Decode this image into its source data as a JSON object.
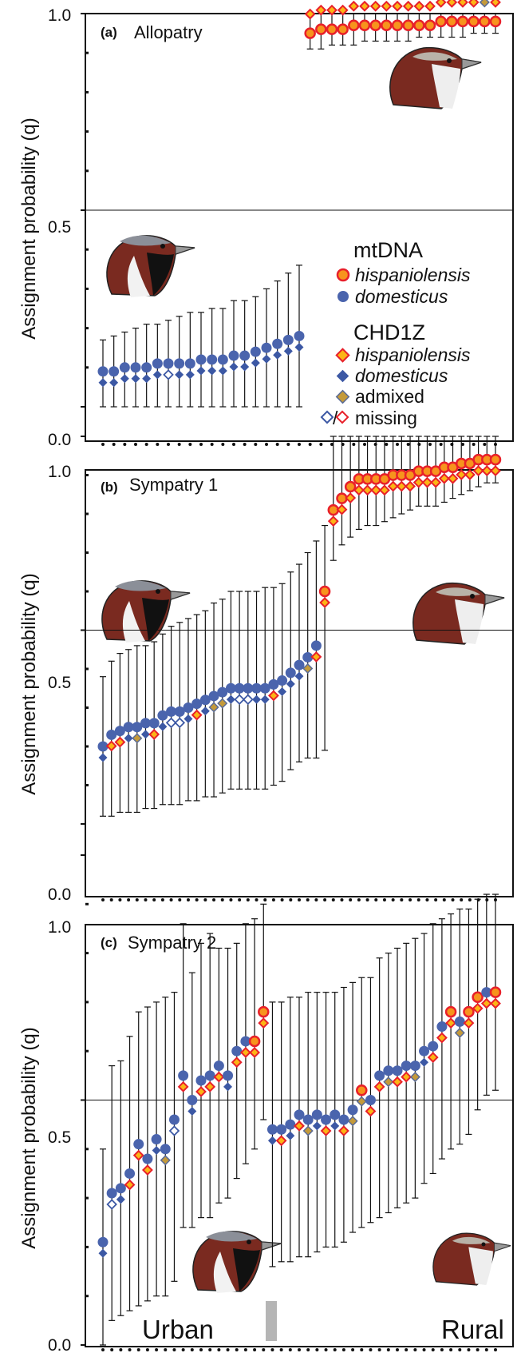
{
  "colors": {
    "mt_hisp_fill": "#f7941d",
    "mt_hisp_stroke": "#e8202a",
    "mt_dom": "#4a64ad",
    "chd_hisp_fill": "#fcb515",
    "chd_hisp_stroke": "#e8202a",
    "chd_dom": "#3c58a4",
    "admixed_fill": "#c49a3a",
    "admixed_stroke": "#5a6b96",
    "bird_head": "#7a2a20",
    "grey_marker": "#b5b5b5"
  },
  "legend": {
    "mtdna_title": "mtDNA",
    "mt_hisp": "hispaniolensis",
    "mt_dom": "domesticus",
    "chd_title": "CHD1Z",
    "chd_hisp": "hispaniolensis",
    "chd_dom": "domesticus",
    "admixed": "admixed",
    "missing": "missing",
    "missing_slash": "/"
  },
  "chart_data": [
    {
      "panel": "(a)",
      "title": "Allopatry",
      "type": "scatter",
      "ylabel": "Assignment probability (q)",
      "ylim": [
        0,
        1
      ],
      "yticks": [
        "0.0",
        "0.5",
        "1.0"
      ],
      "reference_line": 0.5,
      "individuals": [
        {
          "q": 0.09,
          "lo": 0.0,
          "hi": 0.17,
          "mt": "dom",
          "chd": "dom"
        },
        {
          "q": 0.09,
          "lo": 0.0,
          "hi": 0.18,
          "mt": "dom",
          "chd": "dom"
        },
        {
          "q": 0.1,
          "lo": 0.0,
          "hi": 0.19,
          "mt": "dom",
          "chd": "dom"
        },
        {
          "q": 0.1,
          "lo": 0.0,
          "hi": 0.2,
          "mt": "dom",
          "chd": "dom"
        },
        {
          "q": 0.1,
          "lo": 0.0,
          "hi": 0.21,
          "mt": "dom",
          "chd": "dom"
        },
        {
          "q": 0.11,
          "lo": 0.0,
          "hi": 0.21,
          "mt": "dom",
          "chd": "dom"
        },
        {
          "q": 0.11,
          "lo": 0.0,
          "hi": 0.22,
          "mt": "dom",
          "chd": "missing-dom"
        },
        {
          "q": 0.11,
          "lo": 0.0,
          "hi": 0.23,
          "mt": "dom",
          "chd": "dom"
        },
        {
          "q": 0.11,
          "lo": 0.0,
          "hi": 0.24,
          "mt": "dom",
          "chd": "dom"
        },
        {
          "q": 0.12,
          "lo": 0.0,
          "hi": 0.24,
          "mt": "dom",
          "chd": "dom"
        },
        {
          "q": 0.12,
          "lo": 0.0,
          "hi": 0.25,
          "mt": "dom",
          "chd": "dom"
        },
        {
          "q": 0.12,
          "lo": 0.0,
          "hi": 0.25,
          "mt": "dom",
          "chd": "dom"
        },
        {
          "q": 0.13,
          "lo": 0.0,
          "hi": 0.27,
          "mt": "dom",
          "chd": "dom"
        },
        {
          "q": 0.13,
          "lo": 0.0,
          "hi": 0.27,
          "mt": "dom",
          "chd": "dom"
        },
        {
          "q": 0.14,
          "lo": 0.0,
          "hi": 0.28,
          "mt": "dom",
          "chd": "dom"
        },
        {
          "q": 0.15,
          "lo": 0.0,
          "hi": 0.3,
          "mt": "dom",
          "chd": "dom"
        },
        {
          "q": 0.16,
          "lo": 0.0,
          "hi": 0.32,
          "mt": "dom",
          "chd": "dom"
        },
        {
          "q": 0.17,
          "lo": 0.0,
          "hi": 0.34,
          "mt": "dom",
          "chd": "dom"
        },
        {
          "q": 0.18,
          "lo": 0.0,
          "hi": 0.36,
          "mt": "dom",
          "chd": "dom"
        },
        {
          "q": 0.95,
          "lo": 0.91,
          "hi": 1.0,
          "mt": "hisp",
          "chd": "hisp"
        },
        {
          "q": 0.96,
          "lo": 0.91,
          "hi": 1.0,
          "mt": "hisp",
          "chd": "hisp"
        },
        {
          "q": 0.96,
          "lo": 0.92,
          "hi": 1.0,
          "mt": "hisp",
          "chd": "hisp"
        },
        {
          "q": 0.96,
          "lo": 0.92,
          "hi": 1.0,
          "mt": "hisp",
          "chd": "hisp"
        },
        {
          "q": 0.97,
          "lo": 0.92,
          "hi": 1.0,
          "mt": "hisp",
          "chd": "hisp"
        },
        {
          "q": 0.97,
          "lo": 0.93,
          "hi": 1.0,
          "mt": "hisp",
          "chd": "hisp"
        },
        {
          "q": 0.97,
          "lo": 0.93,
          "hi": 1.0,
          "mt": "hisp",
          "chd": "hisp"
        },
        {
          "q": 0.97,
          "lo": 0.93,
          "hi": 1.0,
          "mt": "hisp",
          "chd": "hisp"
        },
        {
          "q": 0.97,
          "lo": 0.93,
          "hi": 1.0,
          "mt": "hisp",
          "chd": "hisp"
        },
        {
          "q": 0.97,
          "lo": 0.93,
          "hi": 1.0,
          "mt": "hisp",
          "chd": "hisp"
        },
        {
          "q": 0.97,
          "lo": 0.94,
          "hi": 1.0,
          "mt": "hisp",
          "chd": "hisp"
        },
        {
          "q": 0.97,
          "lo": 0.94,
          "hi": 1.0,
          "mt": "hisp",
          "chd": "hisp"
        },
        {
          "q": 0.98,
          "lo": 0.94,
          "hi": 1.0,
          "mt": "hisp",
          "chd": "hisp"
        },
        {
          "q": 0.98,
          "lo": 0.94,
          "hi": 1.0,
          "mt": "hisp",
          "chd": "hisp"
        },
        {
          "q": 0.98,
          "lo": 0.94,
          "hi": 1.0,
          "mt": "hisp",
          "chd": "hisp"
        },
        {
          "q": 0.98,
          "lo": 0.95,
          "hi": 1.0,
          "mt": "hisp",
          "chd": "hisp"
        },
        {
          "q": 0.98,
          "lo": 0.95,
          "hi": 1.0,
          "mt": "hisp",
          "chd": "admixed"
        },
        {
          "q": 0.98,
          "lo": 0.95,
          "hi": 1.0,
          "mt": "hisp",
          "chd": "hisp"
        }
      ]
    },
    {
      "panel": "(b)",
      "title": "Sympatry 1",
      "type": "scatter",
      "ylabel": "Assignment probability (q)",
      "ylim": [
        0,
        1
      ],
      "yticks": [
        "0.0",
        "0.5",
        "1.0"
      ],
      "reference_line": 0.5,
      "individuals": [
        {
          "q": 0.2,
          "lo": 0.02,
          "hi": 0.38,
          "mt": "dom",
          "chd": "dom"
        },
        {
          "q": 0.23,
          "lo": 0.02,
          "hi": 0.42,
          "mt": "dom",
          "chd": "hisp"
        },
        {
          "q": 0.24,
          "lo": 0.03,
          "hi": 0.44,
          "mt": "dom",
          "chd": "hisp"
        },
        {
          "q": 0.25,
          "lo": 0.03,
          "hi": 0.45,
          "mt": "dom",
          "chd": "dom"
        },
        {
          "q": 0.25,
          "lo": 0.03,
          "hi": 0.46,
          "mt": "dom",
          "chd": "admixed"
        },
        {
          "q": 0.26,
          "lo": 0.04,
          "hi": 0.46,
          "mt": "dom",
          "chd": "dom"
        },
        {
          "q": 0.26,
          "lo": 0.04,
          "hi": 0.47,
          "mt": "dom",
          "chd": "hisp"
        },
        {
          "q": 0.28,
          "lo": 0.05,
          "hi": 0.49,
          "mt": "dom",
          "chd": "dom"
        },
        {
          "q": 0.29,
          "lo": 0.05,
          "hi": 0.51,
          "mt": "dom",
          "chd": "missing-dom"
        },
        {
          "q": 0.29,
          "lo": 0.05,
          "hi": 0.52,
          "mt": "dom",
          "chd": "missing-dom"
        },
        {
          "q": 0.3,
          "lo": 0.06,
          "hi": 0.53,
          "mt": "dom",
          "chd": "dom"
        },
        {
          "q": 0.31,
          "lo": 0.06,
          "hi": 0.54,
          "mt": "dom",
          "chd": "hisp"
        },
        {
          "q": 0.32,
          "lo": 0.07,
          "hi": 0.55,
          "mt": "dom",
          "chd": "dom"
        },
        {
          "q": 0.33,
          "lo": 0.07,
          "hi": 0.57,
          "mt": "dom",
          "chd": "admixed"
        },
        {
          "q": 0.34,
          "lo": 0.08,
          "hi": 0.58,
          "mt": "dom",
          "chd": "admixed"
        },
        {
          "q": 0.35,
          "lo": 0.09,
          "hi": 0.6,
          "mt": "dom",
          "chd": "dom"
        },
        {
          "q": 0.35,
          "lo": 0.09,
          "hi": 0.6,
          "mt": "dom",
          "chd": "missing-dom"
        },
        {
          "q": 0.35,
          "lo": 0.09,
          "hi": 0.6,
          "mt": "dom",
          "chd": "missing-dom"
        },
        {
          "q": 0.35,
          "lo": 0.09,
          "hi": 0.6,
          "mt": "dom",
          "chd": "dom"
        },
        {
          "q": 0.35,
          "lo": 0.09,
          "hi": 0.61,
          "mt": "dom",
          "chd": "dom"
        },
        {
          "q": 0.36,
          "lo": 0.1,
          "hi": 0.61,
          "mt": "dom",
          "chd": "hisp"
        },
        {
          "q": 0.37,
          "lo": 0.11,
          "hi": 0.62,
          "mt": "dom",
          "chd": "dom"
        },
        {
          "q": 0.39,
          "lo": 0.14,
          "hi": 0.65,
          "mt": "dom",
          "chd": "dom"
        },
        {
          "q": 0.41,
          "lo": 0.16,
          "hi": 0.67,
          "mt": "dom",
          "chd": "dom"
        },
        {
          "q": 0.43,
          "lo": 0.17,
          "hi": 0.7,
          "mt": "dom",
          "chd": "admixed"
        },
        {
          "q": 0.46,
          "lo": 0.17,
          "hi": 0.73,
          "mt": "dom",
          "chd": "hisp"
        },
        {
          "q": 0.6,
          "lo": 0.19,
          "hi": 0.77,
          "mt": "hisp",
          "chd": "hisp"
        },
        {
          "q": 0.81,
          "lo": 0.68,
          "hi": 1.0,
          "mt": "hisp",
          "chd": "hisp"
        },
        {
          "q": 0.84,
          "lo": 0.72,
          "hi": 1.0,
          "mt": "hisp",
          "chd": "hisp"
        },
        {
          "q": 0.87,
          "lo": 0.74,
          "hi": 1.0,
          "mt": "hisp",
          "chd": "hisp"
        },
        {
          "q": 0.89,
          "lo": 0.76,
          "hi": 1.0,
          "mt": "hisp",
          "chd": "hisp"
        },
        {
          "q": 0.89,
          "lo": 0.77,
          "hi": 1.0,
          "mt": "hisp",
          "chd": "hisp"
        },
        {
          "q": 0.89,
          "lo": 0.77,
          "hi": 1.0,
          "mt": "hisp",
          "chd": "hisp"
        },
        {
          "q": 0.89,
          "lo": 0.78,
          "hi": 1.0,
          "mt": "hisp",
          "chd": "hisp"
        },
        {
          "q": 0.9,
          "lo": 0.79,
          "hi": 1.0,
          "mt": "hisp",
          "chd": "hisp"
        },
        {
          "q": 0.9,
          "lo": 0.8,
          "hi": 1.0,
          "mt": "hisp",
          "chd": "hisp"
        },
        {
          "q": 0.9,
          "lo": 0.81,
          "hi": 1.0,
          "mt": "hisp",
          "chd": "hisp"
        },
        {
          "q": 0.91,
          "lo": 0.82,
          "hi": 1.0,
          "mt": "hisp",
          "chd": "hisp"
        },
        {
          "q": 0.91,
          "lo": 0.82,
          "hi": 1.0,
          "mt": "hisp",
          "chd": "hisp"
        },
        {
          "q": 0.91,
          "lo": 0.82,
          "hi": 1.0,
          "mt": "hisp",
          "chd": "hisp"
        },
        {
          "q": 0.92,
          "lo": 0.83,
          "hi": 1.0,
          "mt": "hisp",
          "chd": "hisp"
        },
        {
          "q": 0.92,
          "lo": 0.84,
          "hi": 1.0,
          "mt": "hisp",
          "chd": "hisp"
        },
        {
          "q": 0.93,
          "lo": 0.85,
          "hi": 1.0,
          "mt": "hisp",
          "chd": "hisp"
        },
        {
          "q": 0.93,
          "lo": 0.86,
          "hi": 1.0,
          "mt": "hisp",
          "chd": "hisp"
        },
        {
          "q": 0.94,
          "lo": 0.87,
          "hi": 1.0,
          "mt": "hisp",
          "chd": "hisp"
        },
        {
          "q": 0.94,
          "lo": 0.88,
          "hi": 1.0,
          "mt": "hisp",
          "chd": "hisp"
        },
        {
          "q": 0.94,
          "lo": 0.88,
          "hi": 1.0,
          "mt": "hisp",
          "chd": "hisp"
        }
      ]
    },
    {
      "panel": "(c)",
      "title": "Sympatry 2",
      "type": "scatter",
      "ylabel": "Assignment probability (q)",
      "ylim": [
        0,
        1
      ],
      "yticks": [
        "0.0",
        "0.5",
        "1.0"
      ],
      "reference_line": 0.5,
      "annotations": [
        "Urban",
        "Rural"
      ],
      "individuals": [
        {
          "q": 0.21,
          "lo": 0.0,
          "hi": 0.4,
          "mt": "dom",
          "chd": "dom"
        },
        {
          "q": 0.31,
          "lo": 0.05,
          "hi": 0.57,
          "mt": "dom",
          "chd": "missing-dom"
        },
        {
          "q": 0.32,
          "lo": 0.06,
          "hi": 0.58,
          "mt": "dom",
          "chd": "dom"
        },
        {
          "q": 0.35,
          "lo": 0.07,
          "hi": 0.63,
          "mt": "dom",
          "chd": "hisp"
        },
        {
          "q": 0.41,
          "lo": 0.08,
          "hi": 0.68,
          "mt": "dom",
          "chd": "hisp"
        },
        {
          "q": 0.38,
          "lo": 0.09,
          "hi": 0.69,
          "mt": "dom",
          "chd": "hisp"
        },
        {
          "q": 0.42,
          "lo": 0.1,
          "hi": 0.7,
          "mt": "dom",
          "chd": "dom"
        },
        {
          "q": 0.4,
          "lo": 0.1,
          "hi": 0.71,
          "mt": "dom",
          "chd": "admixed"
        },
        {
          "q": 0.46,
          "lo": 0.13,
          "hi": 0.72,
          "mt": "dom",
          "chd": "missing-dom"
        },
        {
          "q": 0.55,
          "lo": 0.24,
          "hi": 0.86,
          "mt": "dom",
          "chd": "hisp"
        },
        {
          "q": 0.5,
          "lo": 0.24,
          "hi": 0.76,
          "mt": "dom",
          "chd": "dom"
        },
        {
          "q": 0.54,
          "lo": 0.26,
          "hi": 0.82,
          "mt": "dom",
          "chd": "hisp"
        },
        {
          "q": 0.55,
          "lo": 0.26,
          "hi": 0.84,
          "mt": "dom",
          "chd": "hisp"
        },
        {
          "q": 0.57,
          "lo": 0.29,
          "hi": 0.81,
          "mt": "dom",
          "chd": "hisp"
        },
        {
          "q": 0.55,
          "lo": 0.3,
          "hi": 0.81,
          "mt": "dom",
          "chd": "dom"
        },
        {
          "q": 0.6,
          "lo": 0.34,
          "hi": 0.82,
          "mt": "dom",
          "chd": "hisp"
        },
        {
          "q": 0.62,
          "lo": 0.37,
          "hi": 0.86,
          "mt": "dom",
          "chd": "hisp"
        },
        {
          "q": 0.62,
          "lo": 0.4,
          "hi": 0.87,
          "mt": "hisp",
          "chd": "hisp"
        },
        {
          "q": 0.68,
          "lo": 0.46,
          "hi": 0.9,
          "mt": "hisp",
          "chd": "hisp"
        },
        {
          "q": 0.44,
          "lo": 0.16,
          "hi": 0.7,
          "mt": "dom",
          "chd": "dom"
        },
        {
          "q": 0.44,
          "lo": 0.17,
          "hi": 0.7,
          "mt": "dom",
          "chd": "hisp"
        },
        {
          "q": 0.45,
          "lo": 0.17,
          "hi": 0.71,
          "mt": "dom",
          "chd": "dom"
        },
        {
          "q": 0.47,
          "lo": 0.18,
          "hi": 0.71,
          "mt": "dom",
          "chd": "hisp"
        },
        {
          "q": 0.46,
          "lo": 0.18,
          "hi": 0.72,
          "mt": "dom",
          "chd": "admixed"
        },
        {
          "q": 0.47,
          "lo": 0.19,
          "hi": 0.72,
          "mt": "dom",
          "chd": "dom"
        },
        {
          "q": 0.46,
          "lo": 0.2,
          "hi": 0.72,
          "mt": "dom",
          "chd": "hisp"
        },
        {
          "q": 0.47,
          "lo": 0.2,
          "hi": 0.72,
          "mt": "dom",
          "chd": "dom"
        },
        {
          "q": 0.46,
          "lo": 0.21,
          "hi": 0.73,
          "mt": "dom",
          "chd": "hisp"
        },
        {
          "q": 0.48,
          "lo": 0.23,
          "hi": 0.74,
          "mt": "dom",
          "chd": "admixed"
        },
        {
          "q": 0.52,
          "lo": 0.24,
          "hi": 0.75,
          "mt": "hisp",
          "chd": "admixed"
        },
        {
          "q": 0.5,
          "lo": 0.25,
          "hi": 0.75,
          "mt": "dom",
          "chd": "hisp"
        },
        {
          "q": 0.55,
          "lo": 0.26,
          "hi": 0.79,
          "mt": "dom",
          "chd": "hisp"
        },
        {
          "q": 0.56,
          "lo": 0.27,
          "hi": 0.8,
          "mt": "dom",
          "chd": "admixed"
        },
        {
          "q": 0.56,
          "lo": 0.28,
          "hi": 0.81,
          "mt": "dom",
          "chd": "hisp"
        },
        {
          "q": 0.57,
          "lo": 0.29,
          "hi": 0.82,
          "mt": "dom",
          "chd": "hisp"
        },
        {
          "q": 0.57,
          "lo": 0.3,
          "hi": 0.83,
          "mt": "dom",
          "chd": "admixed"
        },
        {
          "q": 0.6,
          "lo": 0.33,
          "hi": 0.84,
          "mt": "dom",
          "chd": "dom"
        },
        {
          "q": 0.61,
          "lo": 0.35,
          "hi": 0.86,
          "mt": "dom",
          "chd": "hisp"
        },
        {
          "q": 0.65,
          "lo": 0.38,
          "hi": 0.87,
          "mt": "dom",
          "chd": "hisp"
        },
        {
          "q": 0.68,
          "lo": 0.4,
          "hi": 0.88,
          "mt": "hisp",
          "chd": "hisp"
        },
        {
          "q": 0.66,
          "lo": 0.41,
          "hi": 0.89,
          "mt": "dom",
          "chd": "admixed"
        },
        {
          "q": 0.68,
          "lo": 0.43,
          "hi": 0.89,
          "mt": "hisp",
          "chd": "hisp"
        },
        {
          "q": 0.71,
          "lo": 0.48,
          "hi": 0.91,
          "mt": "hisp",
          "chd": "hisp"
        },
        {
          "q": 0.72,
          "lo": 0.51,
          "hi": 0.92,
          "mt": "dom",
          "chd": "hisp"
        },
        {
          "q": 0.72,
          "lo": 0.52,
          "hi": 0.92,
          "mt": "hisp",
          "chd": "hisp"
        }
      ]
    }
  ]
}
